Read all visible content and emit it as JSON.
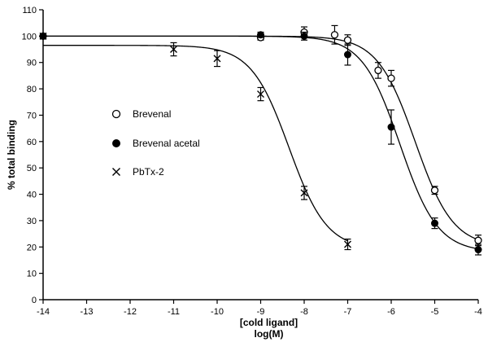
{
  "chart_data": {
    "type": "scatter",
    "xlabel_lines": [
      "[cold ligand]",
      "log(M)"
    ],
    "ylabel": "% total binding",
    "xlim": [
      -14,
      -4
    ],
    "ylim": [
      0,
      110
    ],
    "xticks": [
      -14,
      -13,
      -12,
      -11,
      -10,
      -9,
      -8,
      -7,
      -6,
      -5,
      -4
    ],
    "yticks": [
      0,
      10,
      20,
      30,
      40,
      50,
      60,
      70,
      80,
      90,
      100,
      110
    ],
    "grid": false,
    "legend_position": "middle-left",
    "series": [
      {
        "name": "Brevenal",
        "marker": "open-circle",
        "x": [
          -14,
          -9,
          -8,
          -7.3,
          -7,
          -6.3,
          -6,
          -5,
          -4
        ],
        "y": [
          100,
          99.5,
          101.5,
          100.5,
          98.5,
          87,
          84,
          41.5,
          22.5
        ],
        "err": [
          1,
          1,
          2,
          3.5,
          2,
          3,
          3,
          1.5,
          2
        ],
        "fit": {
          "top": 100,
          "bottom": 20,
          "logIC50": -5.45,
          "hill": 1.0
        }
      },
      {
        "name": "Brevenal acetal",
        "marker": "filled-circle",
        "x": [
          -14,
          -9,
          -8,
          -7,
          -6,
          -5,
          -4
        ],
        "y": [
          100,
          100.5,
          100,
          93,
          65.5,
          29,
          19
        ],
        "err": [
          1,
          1,
          1.5,
          4,
          6.5,
          2,
          2
        ],
        "fit": {
          "top": 100,
          "bottom": 18,
          "logIC50": -5.8,
          "hill": 1.0
        }
      },
      {
        "name": "PbTx-2",
        "marker": "x-cross",
        "x": [
          -14,
          -11,
          -10,
          -9,
          -8,
          -7
        ],
        "y": [
          100,
          95,
          91.5,
          78,
          40.5,
          21
        ],
        "err": [
          1,
          2.5,
          3,
          2.5,
          2.5,
          2
        ],
        "fit": {
          "top": 96.5,
          "bottom": 19,
          "logIC50": -8.35,
          "hill": 1.0
        }
      }
    ]
  }
}
